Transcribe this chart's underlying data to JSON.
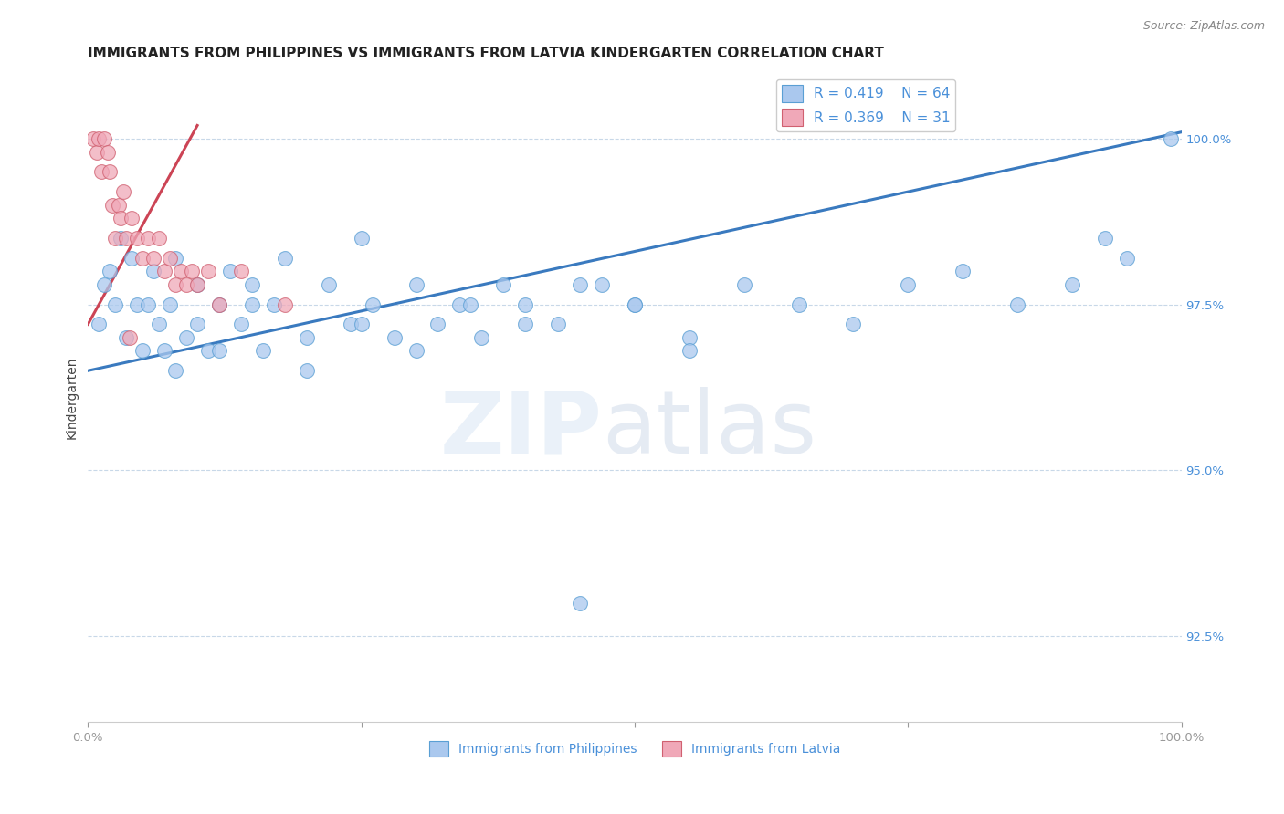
{
  "title": "IMMIGRANTS FROM PHILIPPINES VS IMMIGRANTS FROM LATVIA KINDERGARTEN CORRELATION CHART",
  "source": "Source: ZipAtlas.com",
  "ylabel": "Kindergarten",
  "xlim": [
    0,
    100
  ],
  "ylim": [
    91.2,
    101.0
  ],
  "yticks": [
    92.5,
    95.0,
    97.5,
    100.0
  ],
  "xticks": [
    0,
    25,
    50,
    75,
    100
  ],
  "xtick_labels": [
    "0.0%",
    "",
    "",
    "",
    "100.0%"
  ],
  "ytick_labels": [
    "92.5%",
    "95.0%",
    "97.5%",
    "100.0%"
  ],
  "legend_label1": "Immigrants from Philippines",
  "legend_label2": "Immigrants from Latvia",
  "blue_color": "#aac8ee",
  "pink_color": "#f0a8b8",
  "blue_edge_color": "#5a9fd4",
  "pink_edge_color": "#d06070",
  "blue_line_color": "#3a7abf",
  "pink_line_color": "#cc4455",
  "text_color": "#4a90d9",
  "grid_color": "#c8d8e8",
  "philippines_x": [
    1.0,
    1.5,
    2.0,
    2.5,
    3.0,
    3.5,
    4.0,
    4.5,
    5.0,
    5.5,
    6.0,
    6.5,
    7.0,
    7.5,
    8.0,
    9.0,
    10.0,
    11.0,
    12.0,
    13.0,
    14.0,
    15.0,
    16.0,
    17.0,
    18.0,
    20.0,
    22.0,
    24.0,
    25.0,
    26.0,
    28.0,
    30.0,
    32.0,
    34.0,
    36.0,
    38.0,
    40.0,
    43.0,
    47.0,
    50.0,
    55.0,
    60.0,
    65.0,
    70.0,
    75.0,
    80.0,
    85.0,
    90.0,
    95.0,
    99.0,
    8.0,
    10.0,
    12.0,
    15.0,
    20.0,
    25.0,
    30.0,
    35.0,
    40.0,
    45.0,
    50.0,
    55.0,
    45.0,
    93.0
  ],
  "philippines_y": [
    97.2,
    97.8,
    98.0,
    97.5,
    98.5,
    97.0,
    98.2,
    97.5,
    96.8,
    97.5,
    98.0,
    97.2,
    96.8,
    97.5,
    98.2,
    97.0,
    97.8,
    96.8,
    97.5,
    98.0,
    97.2,
    97.8,
    96.8,
    97.5,
    98.2,
    97.0,
    97.8,
    97.2,
    98.5,
    97.5,
    97.0,
    97.8,
    97.2,
    97.5,
    97.0,
    97.8,
    97.5,
    97.2,
    97.8,
    97.5,
    97.0,
    97.8,
    97.5,
    97.2,
    97.8,
    98.0,
    97.5,
    97.8,
    98.2,
    100.0,
    96.5,
    97.2,
    96.8,
    97.5,
    96.5,
    97.2,
    96.8,
    97.5,
    97.2,
    97.8,
    97.5,
    96.8,
    93.0,
    98.5
  ],
  "latvia_x": [
    0.5,
    0.8,
    1.0,
    1.2,
    1.5,
    1.8,
    2.0,
    2.2,
    2.5,
    2.8,
    3.0,
    3.2,
    3.5,
    4.0,
    4.5,
    5.0,
    5.5,
    6.0,
    6.5,
    7.0,
    7.5,
    8.0,
    8.5,
    9.0,
    9.5,
    10.0,
    11.0,
    12.0,
    14.0,
    18.0,
    3.8
  ],
  "latvia_y": [
    100.0,
    99.8,
    100.0,
    99.5,
    100.0,
    99.8,
    99.5,
    99.0,
    98.5,
    99.0,
    98.8,
    99.2,
    98.5,
    98.8,
    98.5,
    98.2,
    98.5,
    98.2,
    98.5,
    98.0,
    98.2,
    97.8,
    98.0,
    97.8,
    98.0,
    97.8,
    98.0,
    97.5,
    98.0,
    97.5,
    97.0
  ],
  "blue_trend_x": [
    0,
    100
  ],
  "blue_trend_y": [
    96.5,
    100.1
  ],
  "pink_trend_x": [
    0,
    10
  ],
  "pink_trend_y": [
    97.2,
    100.2
  ],
  "title_fontsize": 11,
  "axis_label_fontsize": 10,
  "tick_fontsize": 9.5,
  "legend_fontsize": 11
}
